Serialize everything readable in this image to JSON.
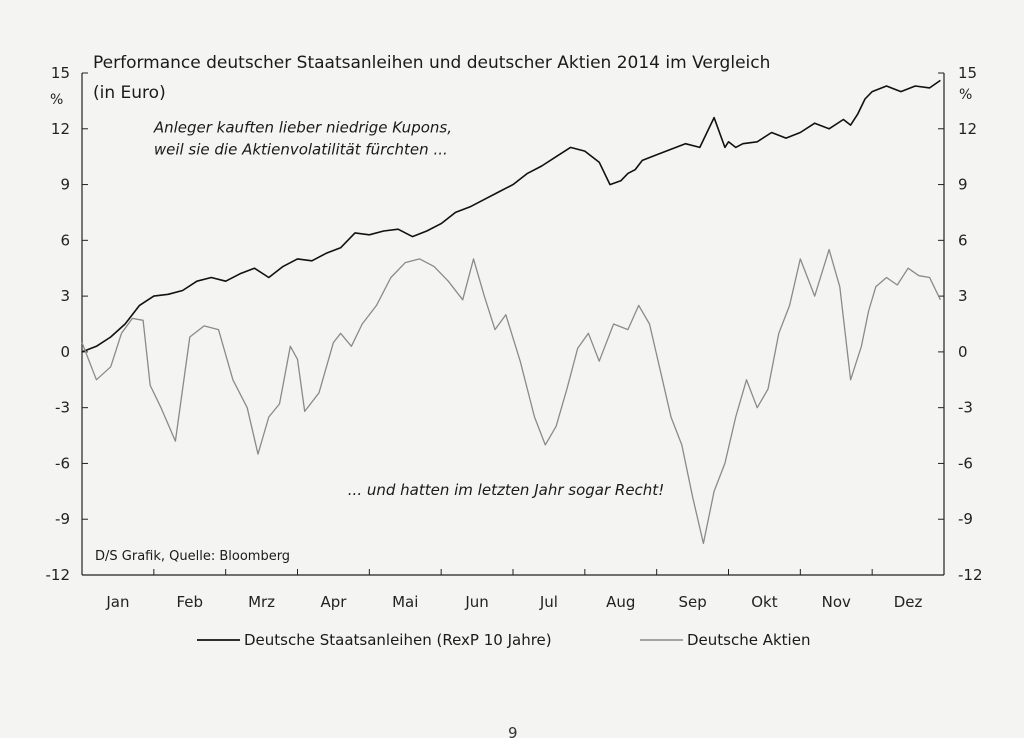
{
  "chart_data": {
    "type": "line",
    "title": "Performance deutscher Staatsanleihen und deutscher Aktien 2014 im Vergleich",
    "subtitle": "(in Euro)",
    "ylabel_left": "%",
    "ylabel_right": "%",
    "ylim": [
      -12,
      15
    ],
    "yticks": [
      15,
      12,
      9,
      6,
      3,
      0,
      -3,
      -6,
      -9,
      -12
    ],
    "ytick_labels": [
      "15",
      "12",
      "9",
      "6",
      "3",
      "0",
      "-3",
      "-6",
      "-9",
      "-12"
    ],
    "categories": [
      "Jan",
      "Feb",
      "Mrz",
      "Apr",
      "Mai",
      "Jun",
      "Jul",
      "Aug",
      "Sep",
      "Okt",
      "Nov",
      "Dez"
    ],
    "x_domain": [
      0,
      12
    ],
    "grid": false,
    "legend_position": "bottom",
    "annotations": [
      {
        "lines": [
          "Anleger kauften lieber niedrige Kupons,",
          "weil sie die Aktienvolatilität fürchten ..."
        ],
        "x": 1.0,
        "y": 11.8
      },
      {
        "lines": [
          "... und hatten im letzten Jahr sogar Recht!"
        ],
        "x": 3.7,
        "y": -7.7
      }
    ],
    "source": "D/S Grafik, Quelle: Bloomberg",
    "series": [
      {
        "name": "Deutsche Staatsanleihen (RexP 10 Jahre)",
        "color": "#111111",
        "x": [
          0,
          0.2,
          0.4,
          0.6,
          0.8,
          1.0,
          1.2,
          1.4,
          1.6,
          1.8,
          2.0,
          2.2,
          2.4,
          2.6,
          2.8,
          3.0,
          3.2,
          3.4,
          3.6,
          3.8,
          4.0,
          4.2,
          4.4,
          4.6,
          4.8,
          5.0,
          5.2,
          5.4,
          5.6,
          5.8,
          6.0,
          6.2,
          6.4,
          6.6,
          6.8,
          7.0,
          7.2,
          7.35,
          7.5,
          7.6,
          7.7,
          7.8,
          8.0,
          8.2,
          8.4,
          8.6,
          8.8,
          8.95,
          9.0,
          9.1,
          9.2,
          9.4,
          9.6,
          9.8,
          10.0,
          10.2,
          10.4,
          10.6,
          10.7,
          10.8,
          10.9,
          11.0,
          11.2,
          11.4,
          11.6,
          11.8,
          11.95
        ],
        "values": [
          0,
          0.3,
          0.8,
          1.5,
          2.5,
          3.0,
          3.1,
          3.3,
          3.8,
          4.0,
          3.8,
          4.2,
          4.5,
          4.0,
          4.6,
          5.0,
          4.9,
          5.3,
          5.6,
          6.4,
          6.3,
          6.5,
          6.6,
          6.2,
          6.5,
          6.9,
          7.5,
          7.8,
          8.2,
          8.6,
          9.0,
          9.6,
          10.0,
          10.5,
          11.0,
          10.8,
          10.2,
          9.0,
          9.2,
          9.6,
          9.8,
          10.3,
          10.6,
          10.9,
          11.2,
          11.0,
          12.6,
          11.0,
          11.3,
          11.0,
          11.2,
          11.3,
          11.8,
          11.5,
          11.8,
          12.3,
          12.0,
          12.5,
          12.2,
          12.8,
          13.6,
          14.0,
          14.3,
          14.0,
          14.3,
          14.2,
          14.6
        ]
      },
      {
        "name": "Deutsche Aktien",
        "color": "#8a8a8a",
        "x": [
          0,
          0.2,
          0.4,
          0.55,
          0.7,
          0.85,
          0.95,
          1.1,
          1.3,
          1.5,
          1.7,
          1.9,
          2.1,
          2.3,
          2.45,
          2.6,
          2.75,
          2.9,
          3.0,
          3.1,
          3.3,
          3.5,
          3.6,
          3.75,
          3.9,
          4.1,
          4.3,
          4.5,
          4.7,
          4.9,
          5.1,
          5.3,
          5.45,
          5.6,
          5.75,
          5.9,
          6.1,
          6.3,
          6.45,
          6.6,
          6.75,
          6.9,
          7.05,
          7.2,
          7.4,
          7.6,
          7.75,
          7.9,
          8.05,
          8.2,
          8.35,
          8.5,
          8.65,
          8.8,
          8.95,
          9.1,
          9.25,
          9.4,
          9.55,
          9.7,
          9.85,
          10.0,
          10.2,
          10.4,
          10.55,
          10.7,
          10.85,
          10.95,
          11.05,
          11.2,
          11.35,
          11.5,
          11.65,
          11.8,
          11.95
        ],
        "values": [
          0.5,
          -1.5,
          -0.8,
          1.0,
          1.8,
          1.7,
          -1.8,
          -3.0,
          -4.8,
          0.8,
          1.4,
          1.2,
          -1.5,
          -3.0,
          -5.5,
          -3.5,
          -2.8,
          0.3,
          -0.4,
          -3.2,
          -2.2,
          0.5,
          1.0,
          0.3,
          1.5,
          2.5,
          4.0,
          4.8,
          5.0,
          4.6,
          3.8,
          2.8,
          5.0,
          3.0,
          1.2,
          2.0,
          -0.5,
          -3.5,
          -5.0,
          -4.0,
          -2.0,
          0.2,
          1.0,
          -0.5,
          1.5,
          1.2,
          2.5,
          1.5,
          -1.0,
          -3.5,
          -5.0,
          -7.8,
          -10.3,
          -7.5,
          -6.0,
          -3.5,
          -1.5,
          -3.0,
          -2.0,
          1.0,
          2.5,
          5.0,
          3.0,
          5.5,
          3.5,
          -1.5,
          0.3,
          2.2,
          3.5,
          4.0,
          3.6,
          4.5,
          4.1,
          4.0,
          2.8
        ]
      }
    ]
  },
  "page_number": "9"
}
